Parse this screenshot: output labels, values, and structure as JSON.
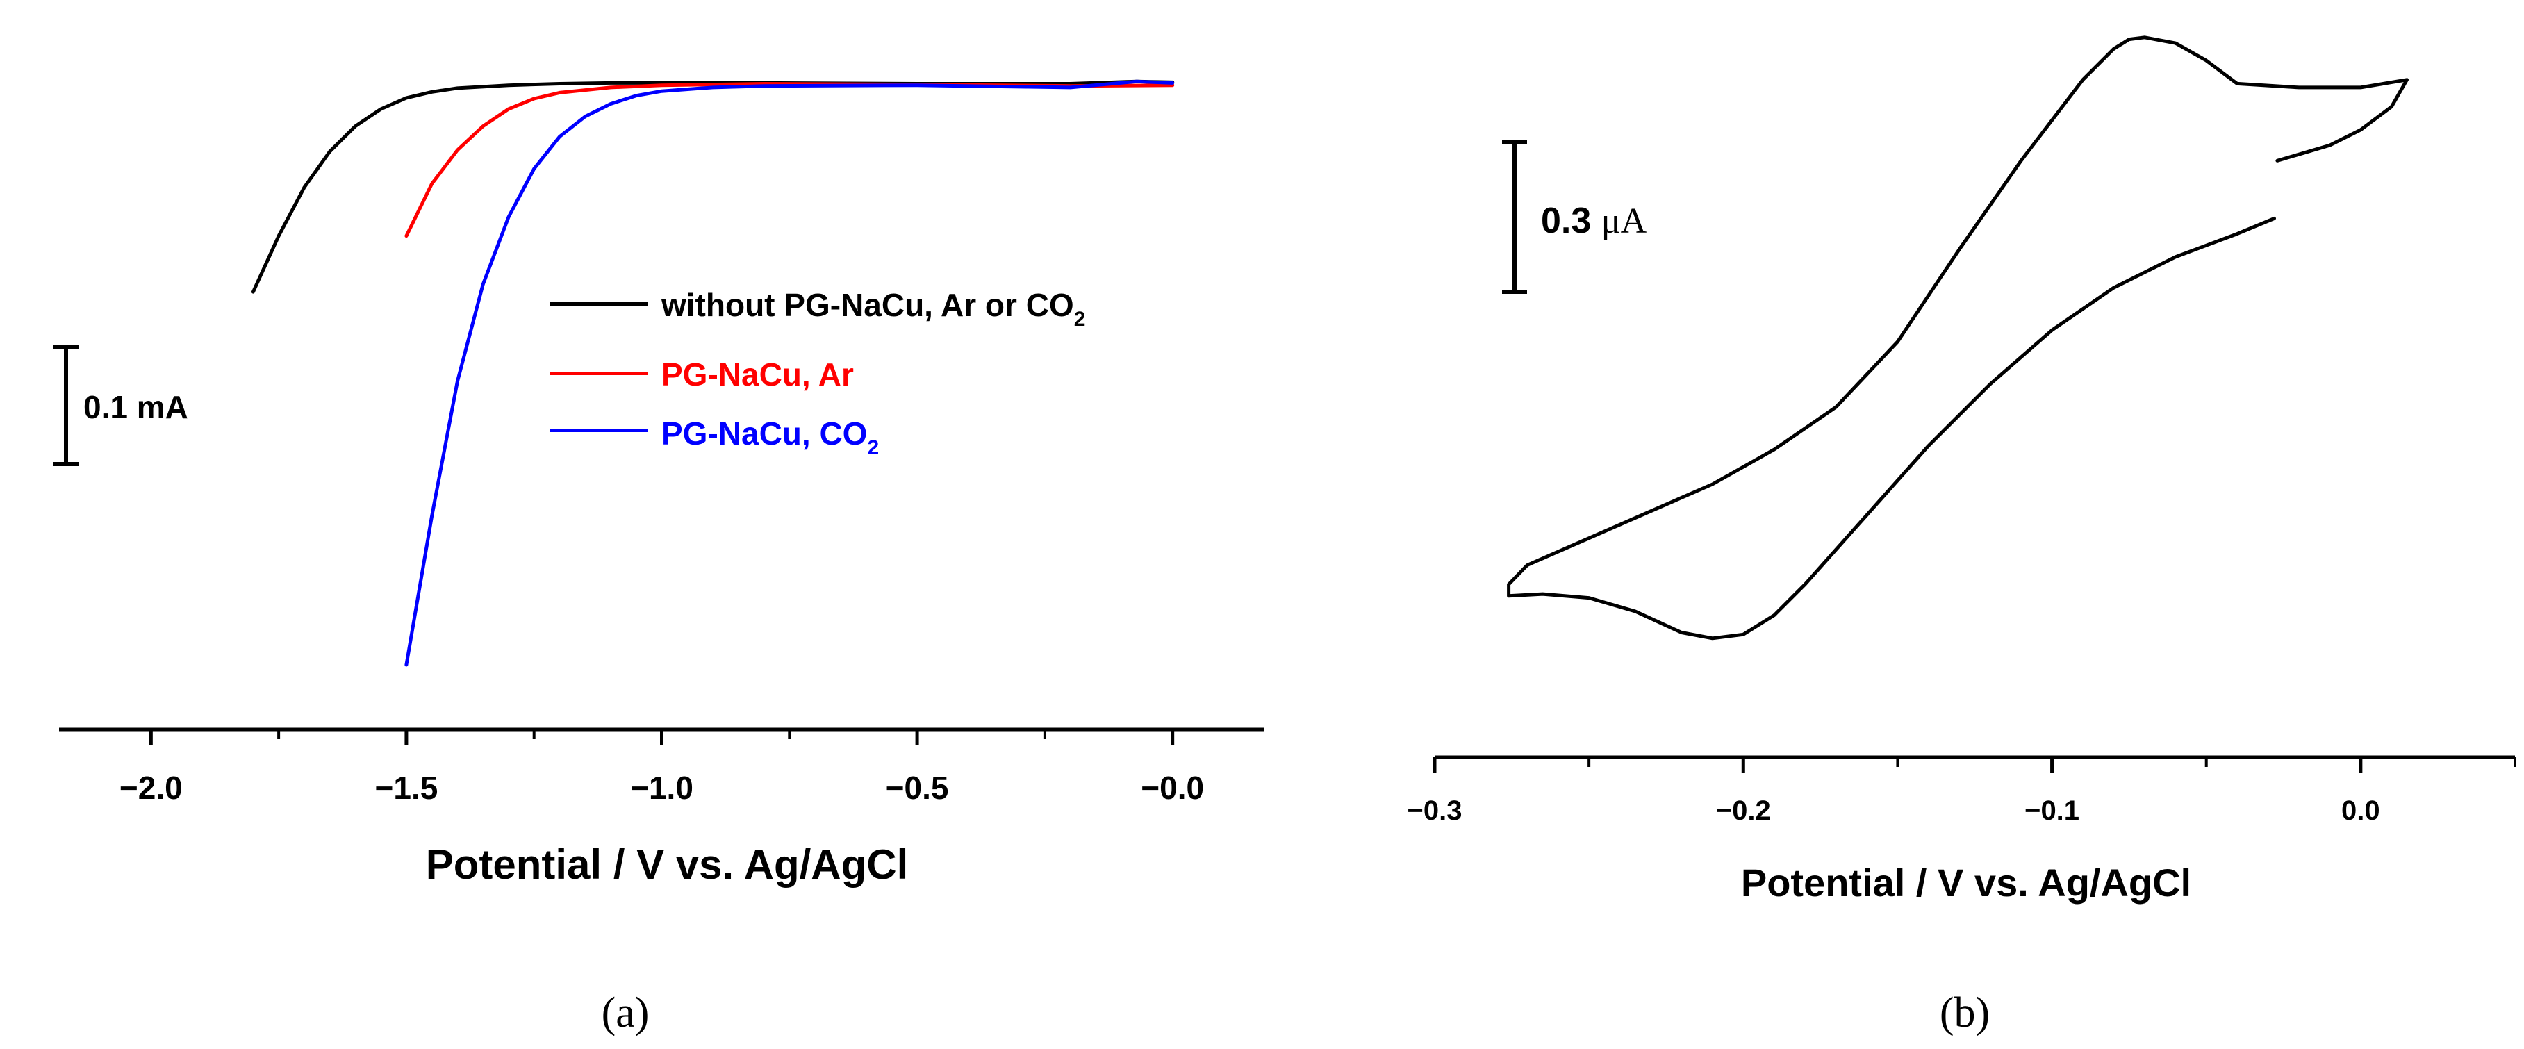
{
  "chart_data": [
    {
      "panel": "a",
      "type": "line",
      "xlabel": "Potential / V vs. Ag/AgCl",
      "ylabel": "",
      "xlim": [
        -2.18,
        0.18
      ],
      "ylim": [
        -0.82,
        0.06
      ],
      "x_ticks": [
        -2.0,
        -1.5,
        -1.0,
        -0.5,
        0.0
      ],
      "x_tick_labels": [
        "−2.0",
        "−1.5",
        "−1.0",
        "−0.5",
        "−0.0"
      ],
      "scale_bar": {
        "value": 0.1,
        "label": "0.1 mA"
      },
      "legend_placement": "center-right",
      "series": [
        {
          "name": "without PG-NaCu, Ar or CO",
          "name_sub": "2",
          "color": "#000000",
          "x": [
            -1.8,
            -1.75,
            -1.7,
            -1.65,
            -1.6,
            -1.55,
            -1.5,
            -1.45,
            -1.4,
            -1.3,
            -1.2,
            -1.1,
            -1.0,
            -0.8,
            -0.5,
            -0.2,
            -0.07,
            0.0
          ],
          "y": [
            -0.28,
            -0.205,
            -0.14,
            -0.092,
            -0.058,
            -0.035,
            -0.02,
            -0.012,
            -0.007,
            -0.003,
            -0.001,
            0.0,
            0.0,
            0.0,
            -0.001,
            -0.001,
            0.002,
            0.001
          ]
        },
        {
          "name": "PG-NaCu, Ar",
          "color": "#ff0000",
          "x": [
            -1.5,
            -1.45,
            -1.4,
            -1.35,
            -1.3,
            -1.25,
            -1.2,
            -1.1,
            -1.0,
            -0.8,
            -0.5,
            -0.2,
            0.0
          ],
          "y": [
            -0.205,
            -0.135,
            -0.09,
            -0.058,
            -0.035,
            -0.021,
            -0.013,
            -0.006,
            -0.003,
            -0.001,
            -0.002,
            -0.004,
            -0.003
          ]
        },
        {
          "name": "PG-NaCu, CO",
          "name_sub": "2",
          "color": "#0000ff",
          "x": [
            -1.5,
            -1.45,
            -1.4,
            -1.35,
            -1.3,
            -1.25,
            -1.2,
            -1.15,
            -1.1,
            -1.05,
            -1.0,
            -0.9,
            -0.8,
            -0.5,
            -0.2,
            -0.07,
            0.0
          ],
          "y": [
            -0.78,
            -0.58,
            -0.4,
            -0.27,
            -0.18,
            -0.115,
            -0.072,
            -0.045,
            -0.028,
            -0.017,
            -0.011,
            -0.006,
            -0.004,
            -0.003,
            -0.006,
            0.002,
            0.0
          ]
        }
      ]
    },
    {
      "panel": "b",
      "type": "line",
      "xlabel": "Potential / V vs. Ag/AgCl",
      "ylabel": "",
      "xlim": [
        -0.3,
        0.05
      ],
      "ylim": [
        -1.72,
        0.06
      ],
      "x_ticks": [
        -0.3,
        -0.2,
        -0.1,
        0.0
      ],
      "x_tick_labels": [
        "−0.3",
        "−0.2",
        "−0.1",
        "0.0"
      ],
      "scale_bar": {
        "value": 0.3,
        "label_num": "0.3 ",
        "label_unit": "μA"
      },
      "series": [
        {
          "name": "",
          "color": "#000000",
          "x": [
            -0.028,
            -0.04,
            -0.06,
            -0.08,
            -0.1,
            -0.12,
            -0.14,
            -0.16,
            -0.18,
            -0.19,
            -0.2,
            -0.21,
            -0.22,
            -0.235,
            -0.25,
            -0.265,
            -0.276,
            -0.276,
            -0.27,
            -0.25,
            -0.23,
            -0.21,
            -0.19,
            -0.17,
            -0.15,
            -0.13,
            -0.11,
            -0.09,
            -0.08,
            -0.075,
            -0.07,
            -0.06,
            -0.05,
            -0.04,
            -0.02,
            0.0,
            0.015,
            0.01,
            0.0,
            -0.01,
            -0.027
          ],
          "y": [
            -0.48,
            -0.52,
            -0.58,
            -0.66,
            -0.77,
            -0.91,
            -1.07,
            -1.25,
            -1.43,
            -1.51,
            -1.56,
            -1.57,
            -1.555,
            -1.5,
            -1.465,
            -1.455,
            -1.46,
            -1.43,
            -1.38,
            -1.31,
            -1.24,
            -1.17,
            -1.08,
            -0.97,
            -0.8,
            -0.56,
            -0.33,
            -0.12,
            -0.04,
            -0.015,
            -0.01,
            -0.025,
            -0.07,
            -0.13,
            -0.14,
            -0.14,
            -0.12,
            -0.19,
            -0.25,
            -0.29,
            -0.33
          ]
        }
      ]
    }
  ],
  "panel_labels": [
    "(a)",
    "(b)"
  ]
}
